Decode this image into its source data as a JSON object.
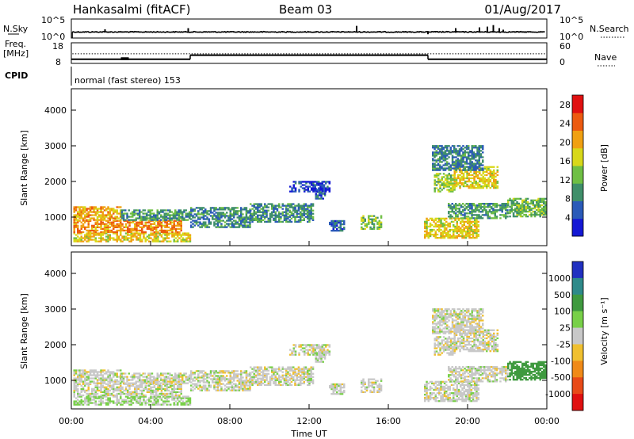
{
  "header": {
    "station": "Hankasalmi (fitACF)",
    "beam": "Beam 03",
    "date": "01/Aug/2017"
  },
  "panel_labels": {
    "nsky": "N.Sky",
    "nsearch": "N.Search",
    "freq_line1": "Freq.",
    "freq_line2": "[MHz]",
    "nave": "Nave",
    "cpid": "CPID",
    "mode": "normal (fast stereo) 153"
  },
  "chart_data": {
    "type": "heatmap",
    "xlabel": "Time UT",
    "x_ticks": [
      "00:00",
      "04:00",
      "08:00",
      "12:00",
      "16:00",
      "20:00",
      "00:00"
    ],
    "xlim_hours": [
      0,
      24
    ],
    "noise_panel": {
      "left_ticks": [
        "10^5",
        "10^0"
      ],
      "right_ticks": [
        "10^5",
        "10^0"
      ],
      "nsky_base_log": 1.6,
      "nsearch_base_log": 1.5,
      "spikes": [
        {
          "hour": 1.7,
          "value_log": 2.3
        },
        {
          "hour": 5.9,
          "value_log": 2.6
        },
        {
          "hour": 14.4,
          "value_log": 3.2
        },
        {
          "hour": 18.0,
          "value_log": 1.0
        },
        {
          "hour": 19.4,
          "value_log": 2.6
        },
        {
          "hour": 20.6,
          "value_log": 2.8
        },
        {
          "hour": 21.0,
          "value_log": 3.0
        },
        {
          "hour": 21.3,
          "value_log": 3.4
        },
        {
          "hour": 21.6,
          "value_log": 2.6
        },
        {
          "hour": 21.8,
          "value_log": 2.2
        }
      ]
    },
    "freq_panel": {
      "left_ticks": [
        "18",
        "8"
      ],
      "right_ticks": [
        "60",
        "0"
      ],
      "freq_segments": [
        {
          "start": 0,
          "end": 6,
          "freq": 10
        },
        {
          "start": 6,
          "end": 18,
          "freq": 12
        },
        {
          "start": 18,
          "end": 24,
          "freq": 10
        }
      ],
      "nave_value": 28
    },
    "power_panel": {
      "ylabel": "Slant Range [km]",
      "y_ticks": [
        1000,
        2000,
        3000,
        4000
      ],
      "ylim": [
        200,
        4600
      ],
      "colorbar_label": "Power [dB]",
      "colorbar_ticks": [
        4,
        8,
        12,
        16,
        20,
        24,
        28
      ],
      "colorbar_range": [
        0,
        30
      ],
      "colors": [
        "#1418d4",
        "#2a5ab8",
        "#3f8f6a",
        "#6fbf44",
        "#d8d81a",
        "#f0a012",
        "#ec5a10",
        "#e01010"
      ]
    },
    "velocity_panel": {
      "ylabel": "Slant Range [km]",
      "y_ticks": [
        1000,
        2000,
        3000,
        4000
      ],
      "ylim": [
        200,
        4600
      ],
      "colorbar_label": "Velocity [m s⁻¹]",
      "colorbar_ticks": [
        "1000",
        "500",
        "100",
        "25",
        "-25",
        "-100",
        "-500",
        "-1000"
      ],
      "colors": [
        "#2030c0",
        "#2e8a8a",
        "#3f9a3f",
        "#78d048",
        "#c8c8c8",
        "#f0c030",
        "#f08a18",
        "#e84a18",
        "#e01010"
      ]
    },
    "echo_regions": [
      {
        "t0": 0.1,
        "t1": 6.0,
        "r0": 300,
        "r1": 560,
        "p": 18,
        "v": 25
      },
      {
        "t0": 0.1,
        "t1": 5.5,
        "r0": 560,
        "r1": 900,
        "p": 22,
        "v": 0
      },
      {
        "t0": 0.1,
        "t1": 2.5,
        "r0": 900,
        "r1": 1300,
        "p": 20,
        "v": 0
      },
      {
        "t0": 2.5,
        "t1": 6.0,
        "r0": 900,
        "r1": 1200,
        "p": 10,
        "v": 0
      },
      {
        "t0": 6.0,
        "t1": 9.0,
        "r0": 700,
        "r1": 1250,
        "p": 9,
        "v": 0
      },
      {
        "t0": 9.0,
        "t1": 12.2,
        "r0": 850,
        "r1": 1350,
        "p": 9,
        "v": 0
      },
      {
        "t0": 12.3,
        "t1": 12.8,
        "r0": 1500,
        "r1": 1800,
        "p": 6,
        "v": 0
      },
      {
        "t0": 11.0,
        "t1": 13.0,
        "r0": 1700,
        "r1": 2000,
        "p": 4,
        "v": 0
      },
      {
        "t0": 13.0,
        "t1": 13.8,
        "r0": 600,
        "r1": 900,
        "p": 6,
        "v": 0
      },
      {
        "t0": 14.6,
        "t1": 15.6,
        "r0": 650,
        "r1": 1050,
        "p": 14,
        "v": 0
      },
      {
        "t0": 17.8,
        "t1": 20.5,
        "r0": 400,
        "r1": 950,
        "p": 18,
        "v": 0
      },
      {
        "t0": 19.0,
        "t1": 22.0,
        "r0": 950,
        "r1": 1400,
        "p": 10,
        "v": 0
      },
      {
        "t0": 22.0,
        "t1": 23.9,
        "r0": 1000,
        "r1": 1500,
        "p": 12,
        "v": 300
      },
      {
        "t0": 18.3,
        "t1": 19.3,
        "r0": 1700,
        "r1": 2200,
        "p": 14,
        "v": 0
      },
      {
        "t0": 19.3,
        "t1": 21.5,
        "r0": 1800,
        "r1": 2400,
        "p": 18,
        "v": 0
      },
      {
        "t0": 18.2,
        "t1": 20.8,
        "r0": 2300,
        "r1": 3000,
        "p": 8,
        "v": 0
      }
    ]
  }
}
